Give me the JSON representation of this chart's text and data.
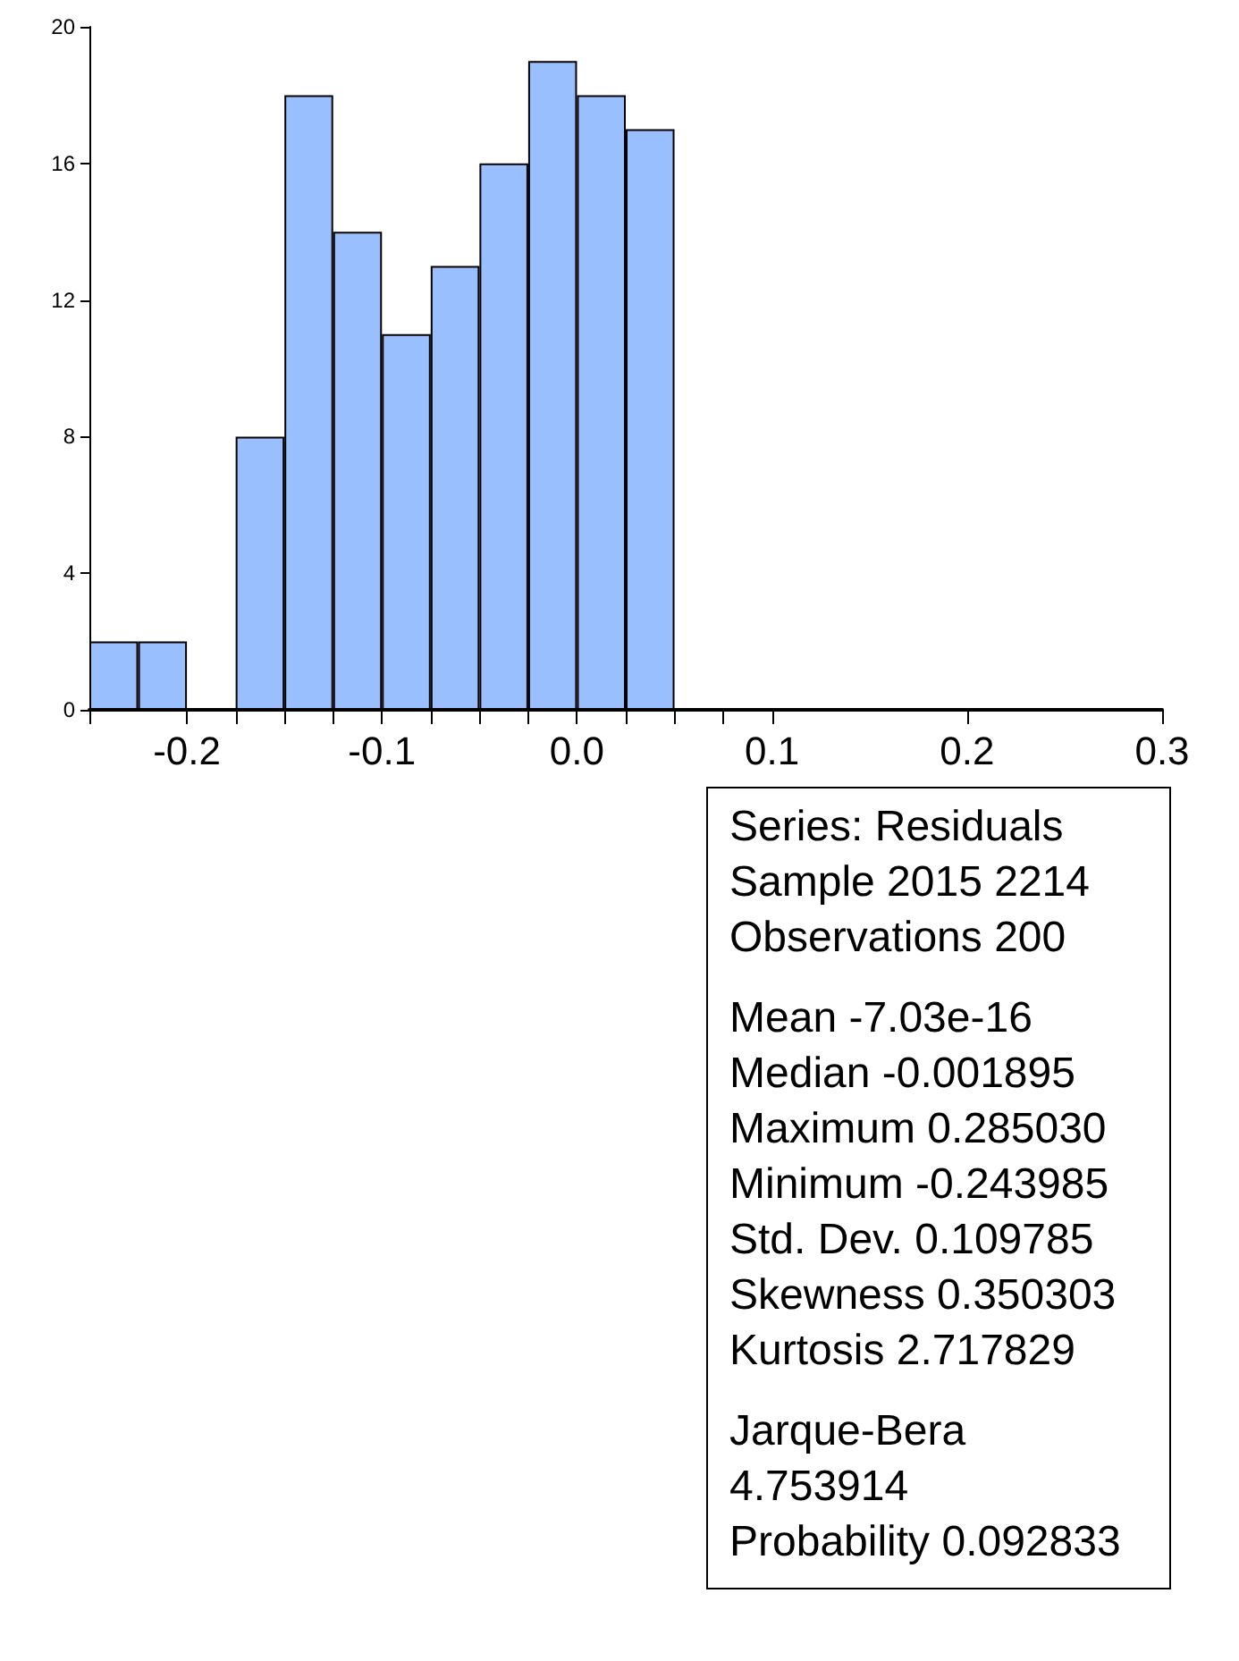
{
  "chart_data": {
    "type": "histogram",
    "bins": [
      -0.25,
      -0.225,
      -0.2,
      -0.175,
      -0.15,
      -0.125,
      -0.1,
      -0.075,
      -0.05,
      -0.025,
      0,
      0.025,
      0.05
    ],
    "values": [
      2,
      2,
      0,
      8,
      18,
      14,
      11,
      13,
      16,
      19,
      18,
      17
    ],
    "color": "#99bfff",
    "xlim": [
      -0.25,
      0.3
    ],
    "xticks": [
      {
        "value": -0.25,
        "label": null
      },
      {
        "value": -0.2,
        "label": "-0.2"
      },
      {
        "value": -0.175,
        "label": null
      },
      {
        "value": -0.15,
        "label": null
      },
      {
        "value": -0.125,
        "label": null
      },
      {
        "value": -0.1,
        "label": "-0.1"
      },
      {
        "value": -0.075,
        "label": null
      },
      {
        "value": -0.05,
        "label": null
      },
      {
        "value": -0.025,
        "label": null
      },
      {
        "value": 0,
        "label": "0.0"
      },
      {
        "value": 0.025,
        "label": null
      },
      {
        "value": 0.05,
        "label": null
      },
      {
        "value": 0.075,
        "label": null
      },
      {
        "value": 0.1,
        "label": "0.1"
      },
      {
        "value": 0.2,
        "label": "0.2"
      },
      {
        "value": 0.3,
        "label": "0.3"
      }
    ],
    "ylim": [
      0,
      20
    ],
    "yticks": [
      {
        "value": 0,
        "label": "0"
      },
      {
        "value": 4,
        "label": "4"
      },
      {
        "value": 8,
        "label": "8"
      },
      {
        "value": 12,
        "label": "12"
      },
      {
        "value": 16,
        "label": "16"
      },
      {
        "value": 20,
        "label": "20"
      }
    ],
    "grid": false,
    "annotations": [
      "Series: Residuals",
      "Sample 2015 2214",
      "Observations 200",
      "Mean -7.03e-16",
      "Median -0.001895",
      "Maximum 0.285030",
      "Minimum -0.243985",
      "Std. Dev. 0.109785",
      "Skewness 0.350303",
      "Kurtosis 2.717829",
      "Jarque-Bera 4.753914",
      "Probability 0.092833"
    ]
  }
}
